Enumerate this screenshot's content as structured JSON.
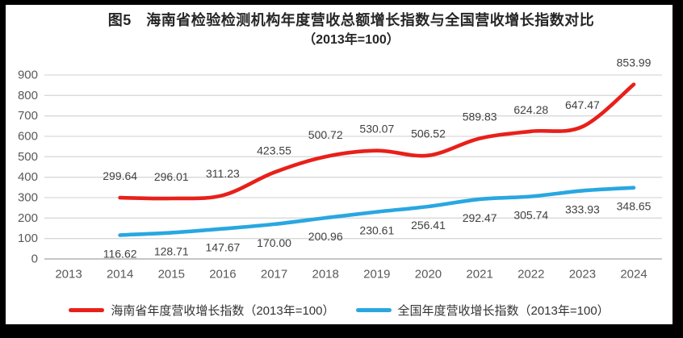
{
  "title": {
    "line1": "图5　海南省检验检测机构年度营收总额增长指数与全国营收增长指数对比",
    "line2": "（2013年=100）"
  },
  "chart_data": {
    "type": "line",
    "title": "图5 海南省检验检测机构年度营收总额增长指数与全国营收增长指数对比（2013年=100）",
    "categories": [
      "2013",
      "2014",
      "2015",
      "2016",
      "2017",
      "2018",
      "2019",
      "2020",
      "2021",
      "2022",
      "2023",
      "2024"
    ],
    "ylim": [
      0,
      900
    ],
    "ytick_step": 100,
    "yticks": [
      0,
      100,
      200,
      300,
      400,
      500,
      600,
      700,
      800,
      900
    ],
    "grid": "horizontal",
    "legend_position": "bottom",
    "smoothed_lines": true,
    "markers": false,
    "series": [
      {
        "name": "海南省年度营收增长指数（2013年=100）",
        "color": "#e8201a",
        "label_position": "above",
        "x": [
          "2014",
          "2015",
          "2016",
          "2017",
          "2018",
          "2019",
          "2020",
          "2021",
          "2022",
          "2023",
          "2024"
        ],
        "values": [
          299.64,
          296.01,
          311.23,
          423.55,
          500.72,
          530.07,
          506.52,
          589.83,
          624.28,
          647.47,
          853.99
        ]
      },
      {
        "name": "全国年度营收增长指数（2013年=100）",
        "color": "#29a7e0",
        "label_position": "below",
        "x": [
          "2014",
          "2015",
          "2016",
          "2017",
          "2018",
          "2019",
          "2020",
          "2021",
          "2022",
          "2023",
          "2024"
        ],
        "values": [
          116.62,
          128.71,
          147.67,
          170.0,
          200.96,
          230.61,
          256.41,
          292.47,
          305.74,
          333.93,
          348.65
        ]
      }
    ]
  },
  "colors": {
    "hainan_series": "#e8201a",
    "national_series": "#29a7e0",
    "gridline": "#d9d9d9",
    "axis_line": "#b3b3b3",
    "tick_label": "#595959",
    "data_label": "#404040",
    "title_text": "#262626"
  }
}
